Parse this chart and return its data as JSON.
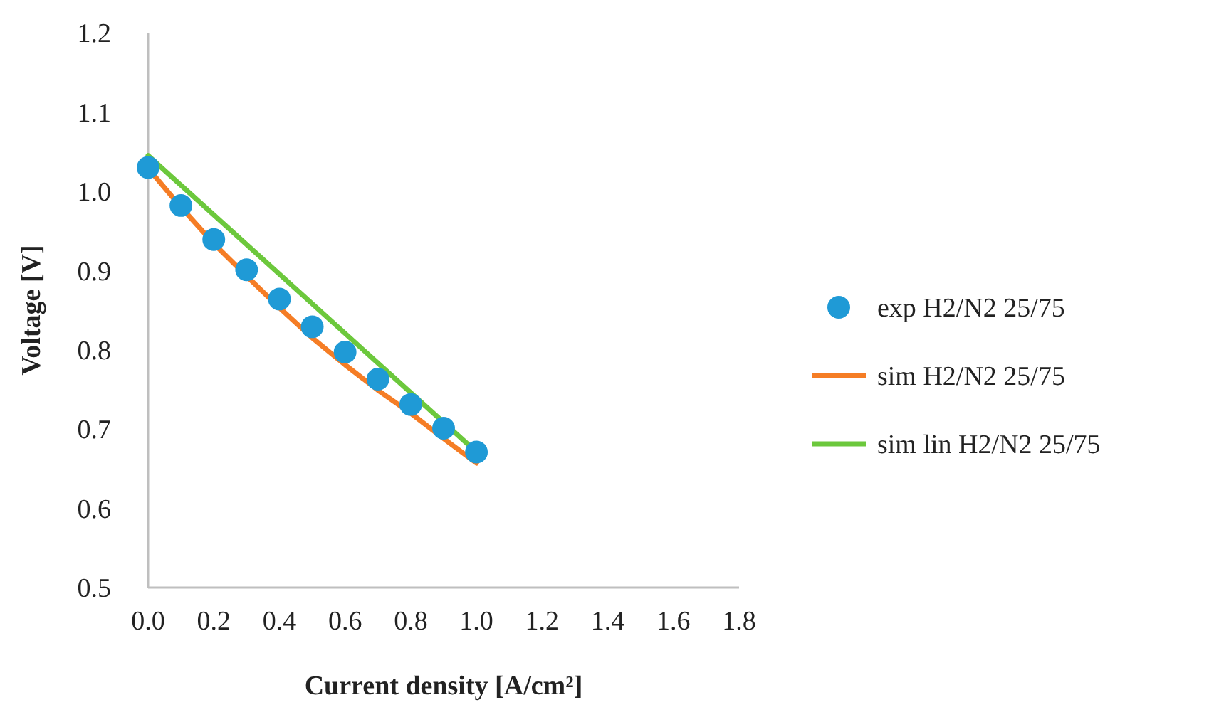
{
  "chart_data": {
    "type": "scatter",
    "xlabel": "Current density [A/cm²]",
    "ylabel": "Voltage [V]",
    "xlim": [
      0,
      1.8
    ],
    "xticks": [
      {
        "value": 0,
        "label": "0.0"
      },
      {
        "value": 0.2,
        "label": "0.2"
      },
      {
        "value": 0.4,
        "label": "0.4"
      },
      {
        "value": 0.6,
        "label": "0.6"
      },
      {
        "value": 0.8,
        "label": "0.8"
      },
      {
        "value": 1,
        "label": "1.0"
      },
      {
        "value": 1.2,
        "label": "1.2"
      },
      {
        "value": 1.4,
        "label": "1.4"
      },
      {
        "value": 1.6,
        "label": "1.6"
      },
      {
        "value": 1.8,
        "label": "1.8"
      }
    ],
    "ylim": [
      0.5,
      1.2
    ],
    "yticks": [
      0.5,
      0.6,
      0.7,
      0.8,
      0.9,
      {
        "value": 1,
        "label": "1.0"
      },
      1.1,
      1.2
    ],
    "legend": "right",
    "grid": false,
    "series": [
      {
        "name": "exp H2/N2 25/75",
        "marker": "circle",
        "color": "#1f9ad6",
        "x": [
          0,
          0.1,
          0.2,
          0.3,
          0.4,
          0.5,
          0.6,
          0.7,
          0.8,
          0.9,
          1.0
        ],
        "values": [
          1.03,
          0.982,
          0.939,
          0.901,
          0.864,
          0.829,
          0.797,
          0.763,
          0.731,
          0.701,
          0.671
        ]
      },
      {
        "name": "sim H2/N2 25/75",
        "type": "line",
        "color": "#f57d25",
        "x": [
          0,
          0.1,
          0.2,
          0.3,
          0.4,
          0.5,
          0.6,
          0.7,
          0.8,
          0.9,
          1.0
        ],
        "values": [
          1.029,
          0.98,
          0.934,
          0.893,
          0.853,
          0.815,
          0.781,
          0.749,
          0.72,
          0.688,
          0.657
        ]
      },
      {
        "name": "sim lin H2/N2 25/75",
        "type": "line",
        "color": "#6cc83c",
        "x": [
          0,
          1.0
        ],
        "values": [
          1.045,
          0.671
        ]
      }
    ]
  }
}
